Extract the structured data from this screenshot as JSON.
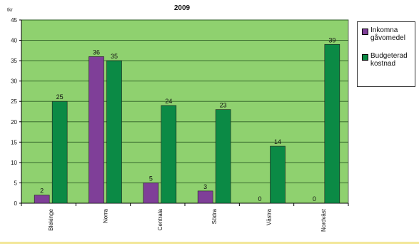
{
  "chart_data": {
    "type": "bar",
    "title": "2009",
    "ylabel_unit": "tkr",
    "ylim": [
      0,
      45
    ],
    "yticks": [
      0,
      5,
      10,
      15,
      20,
      25,
      30,
      35,
      40,
      45
    ],
    "categories": [
      "Blekinge",
      "Norra",
      "Centrala",
      "Södra",
      "Västra",
      "Nordväst"
    ],
    "series": [
      {
        "name": "Inkomna gåvomedel",
        "color": "#7f3f98",
        "values": [
          2,
          36,
          5,
          3,
          0,
          0
        ]
      },
      {
        "name": "Budgeterad kostnad",
        "color": "#0b8a45",
        "values": [
          25,
          35,
          24,
          23,
          14,
          39
        ]
      }
    ],
    "grid": true,
    "plot_background": "#8fd16f",
    "legend_position": "right"
  }
}
